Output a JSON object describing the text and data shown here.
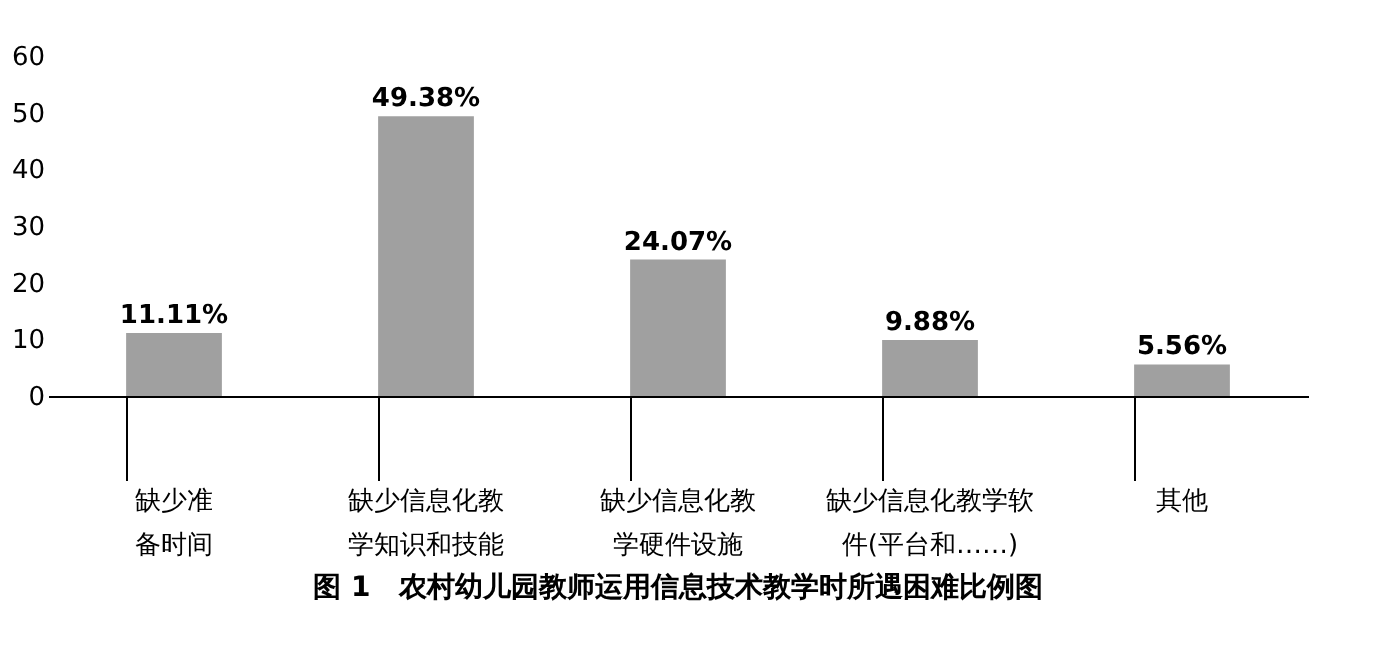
{
  "chart_data": {
    "type": "bar",
    "title": "图 1　农村幼儿园教师运用信息技术教学时所遇困难比例图",
    "categories": [
      "缺少准备时间",
      "缺少信息化教学知识和技能",
      "缺少信息化教学硬件设施",
      "缺少信息化教学软件(平台和……)",
      "其他"
    ],
    "values": [
      11.11,
      49.38,
      24.07,
      9.88,
      5.56
    ],
    "value_labels": [
      "11.11%",
      "49.38%",
      "24.07%",
      "9.88%",
      "5.56%"
    ],
    "color": "#a0a0a0",
    "ylim": [
      0,
      60
    ],
    "yticks": [
      0,
      10,
      20,
      30,
      40,
      50,
      60
    ],
    "grid": false
  }
}
